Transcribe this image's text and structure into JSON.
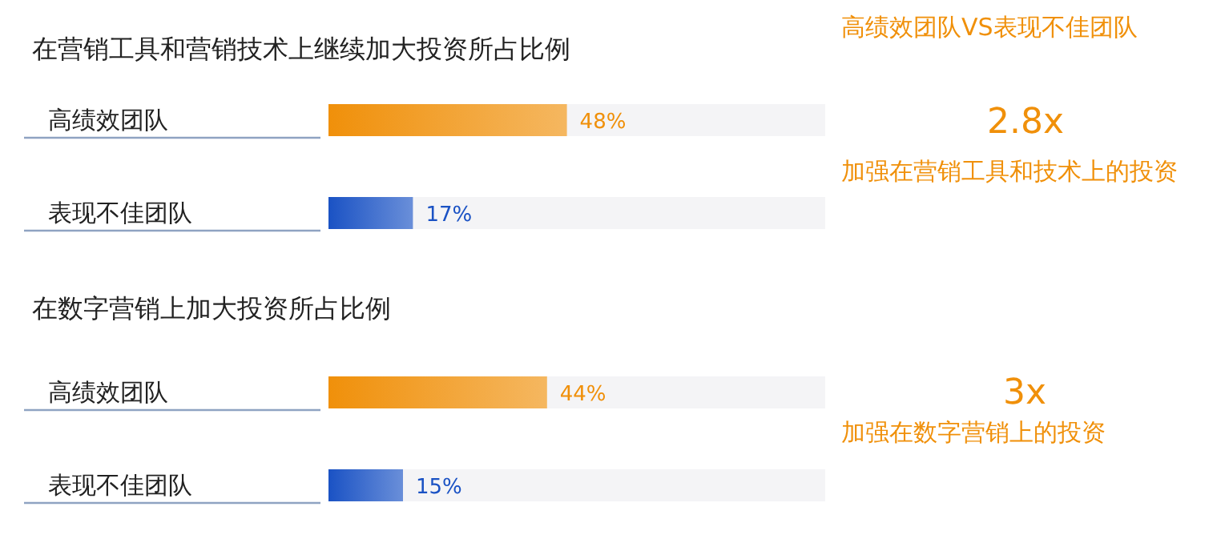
{
  "chart_data": [
    {
      "type": "bar",
      "orientation": "horizontal",
      "title": "在营销工具和营销技术上继续加大投资所占比例",
      "categories": [
        "高绩效团队",
        "表现不佳团队"
      ],
      "values": [
        48,
        17
      ],
      "value_labels": [
        "48%",
        "17%"
      ],
      "colors": [
        "#f0900a",
        "#1a52c4"
      ],
      "tick_labels": "y",
      "annotations": [
        "高绩效团队VS表现不佳团队",
        "2.8x",
        "加强在营销工具和技术上的投资"
      ]
    },
    {
      "type": "bar",
      "orientation": "horizontal",
      "title": "在数字营销上加大投资所占比例",
      "categories": [
        "高绩效团队",
        "表现不佳团队"
      ],
      "values": [
        44,
        15
      ],
      "value_labels": [
        "44%",
        "15%"
      ],
      "colors": [
        "#f0900a",
        "#1a52c4"
      ],
      "tick_labels": "y",
      "annotations": [
        "3x",
        "加强在数字营销上的投资"
      ]
    }
  ]
}
